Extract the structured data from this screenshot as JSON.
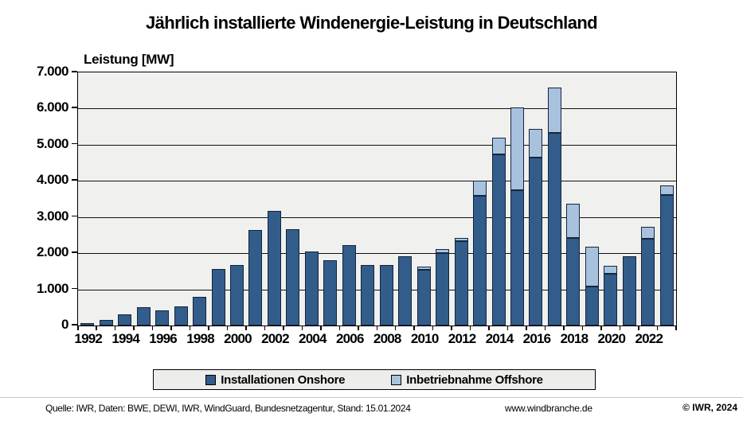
{
  "title": "Jährlich installierte Windenergie-Leistung in Deutschland",
  "axis_title": "Leistung [MW]",
  "colors": {
    "onshore": "#325C8A",
    "offshore": "#A8C2DE",
    "bar_border": "#12263E",
    "plot_bg": "#F0F0EE",
    "legend_bg": "#EDEDEB",
    "grid": "#111111"
  },
  "chart_data": {
    "type": "bar",
    "stacked": true,
    "title": "Jährlich installierte Windenergie-Leistung in Deutschland",
    "xlabel": "",
    "ylabel": "Leistung [MW]",
    "ylim": [
      0,
      7000
    ],
    "ytick_step": 1000,
    "ytick_labels": [
      "0",
      "1.000",
      "2.000",
      "3.000",
      "4.000",
      "5.000",
      "6.000",
      "7.000"
    ],
    "grid": true,
    "legend_position": "bottom-center",
    "categories": [
      1992,
      1993,
      1994,
      1995,
      1996,
      1997,
      1998,
      1999,
      2000,
      2001,
      2002,
      2003,
      2004,
      2005,
      2006,
      2007,
      2008,
      2009,
      2010,
      2011,
      2012,
      2013,
      2014,
      2015,
      2016,
      2017,
      2018,
      2019,
      2020,
      2021,
      2022,
      2023
    ],
    "xtick_labels": [
      "1992",
      "1994",
      "1996",
      "1998",
      "2000",
      "2002",
      "2004",
      "2006",
      "2008",
      "2010",
      "2012",
      "2014",
      "2016",
      "2018",
      "2020",
      "2022"
    ],
    "series": [
      {
        "name": "Installationen Onshore",
        "color": "#325C8A",
        "values": [
          75,
          155,
          305,
          505,
          425,
          535,
          790,
          1565,
          1665,
          2650,
          3180,
          2670,
          2040,
          1810,
          2230,
          1665,
          1665,
          1920,
          1550,
          2000,
          2330,
          3590,
          4740,
          3750,
          4650,
          5330,
          2420,
          1080,
          1430,
          1925,
          2400,
          3600
        ]
      },
      {
        "name": "Inbetriebnahme Offshore",
        "color": "#A8C2DE",
        "values": [
          0,
          0,
          0,
          0,
          0,
          0,
          0,
          0,
          0,
          0,
          0,
          0,
          0,
          0,
          0,
          0,
          0,
          0,
          80,
          100,
          80,
          410,
          470,
          2280,
          800,
          1250,
          940,
          1110,
          220,
          0,
          340,
          260
        ]
      }
    ]
  },
  "legend": {
    "items": [
      {
        "label": "Installationen Onshore"
      },
      {
        "label": "Inbetriebnahme Offshore"
      }
    ]
  },
  "footer": {
    "source": "Quelle: IWR, Daten: BWE, DEWI, IWR, WindGuard, Bundesnetzagentur, Stand: 15.01.2024",
    "website": "www.windbranche.de",
    "copyright": "© IWR, 2024"
  }
}
